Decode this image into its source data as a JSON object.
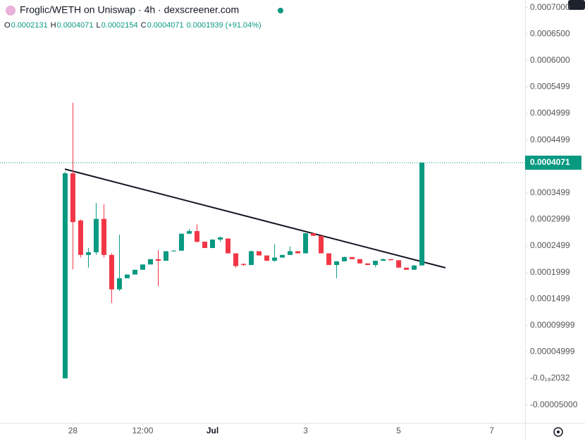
{
  "chart_data": {
    "type": "candlestick",
    "title": "Froglic/WETH on Uniswap · 4h · dexscreener.com",
    "ohlc_header": [
      {
        "key": "O",
        "text": "0.0002131"
      },
      {
        "key": "H",
        "text": "0.0004071"
      },
      {
        "key": "L",
        "text": "0.0002154"
      },
      {
        "key": "C",
        "text": "0.0004071"
      }
    ],
    "change_text": "0.0001939 (+91.04%)",
    "current_price": 0.0004071,
    "up_color": "#089981",
    "down_color": "#f23645",
    "x": [
      0,
      1,
      2,
      3,
      4,
      5,
      6,
      7,
      8,
      9,
      10,
      11,
      12,
      13,
      14,
      15,
      16,
      17,
      18,
      19,
      20,
      21,
      22,
      23,
      24,
      25,
      26,
      27,
      28,
      29,
      30,
      31,
      32,
      33,
      34,
      35,
      36,
      37,
      38,
      39,
      40,
      41,
      42,
      43,
      44,
      45,
      46
    ],
    "open": [
      0.0,
      0.000387,
      0.000298,
      0.000233,
      0.000238,
      0.000301,
      0.000233,
      0.000168,
      0.000189,
      0.000196,
      0.000205,
      0.000215,
      0.000225,
      0.000222,
      0.00024,
      0.000241,
      0.000273,
      0.000278,
      0.000258,
      0.000246,
      0.000262,
      0.000264,
      0.000236,
      0.000216,
      0.000214,
      0.00024,
      0.000232,
      0.000222,
      0.000228,
      0.000233,
      0.00024,
      0.000236,
      0.000274,
      0.000269,
      0.000236,
      0.000214,
      0.000221,
      0.000229,
      0.000225,
      0.000217,
      0.000214,
      0.000222,
      0.000225,
      0.000223,
      0.000209,
      0.000205,
      0.0002131
    ],
    "high": [
      0.00039,
      0.00052,
      0.0003,
      0.000246,
      0.000331,
      0.000329,
      0.000236,
      0.000271,
      0.000196,
      0.000205,
      0.000215,
      0.000225,
      0.000242,
      0.00024,
      0.000242,
      0.000273,
      0.000282,
      0.000291,
      0.000258,
      0.000262,
      0.000268,
      0.000264,
      0.000236,
      0.000217,
      0.000241,
      0.00024,
      0.000232,
      0.000253,
      0.000233,
      0.000249,
      0.00024,
      0.000274,
      0.000274,
      0.000269,
      0.000236,
      0.000221,
      0.00023,
      0.000229,
      0.000225,
      0.000217,
      0.000222,
      0.000226,
      0.000225,
      0.000223,
      0.000209,
      0.000214,
      0.0004071
    ],
    "low": [
      0.0,
      0.000206,
      0.000228,
      0.000209,
      0.000233,
      0.000228,
      0.000142,
      0.000165,
      0.000189,
      0.000196,
      0.000205,
      0.000215,
      0.000174,
      0.000222,
      0.00024,
      0.000241,
      0.000273,
      0.000256,
      0.000246,
      0.000246,
      0.000258,
      0.000236,
      0.000209,
      0.000212,
      0.000214,
      0.000232,
      0.000222,
      0.00022,
      0.000228,
      0.000233,
      0.000236,
      0.000236,
      0.000269,
      0.000236,
      0.000214,
      0.000189,
      0.000221,
      0.000225,
      0.000217,
      0.000214,
      0.00021,
      0.000222,
      0.000223,
      0.000209,
      0.000205,
      0.000205,
      0.0002154
    ],
    "close": [
      0.000387,
      0.000295,
      0.000233,
      0.000238,
      0.000301,
      0.000233,
      0.000168,
      0.000189,
      0.000196,
      0.000205,
      0.000215,
      0.000225,
      0.000222,
      0.00024,
      0.000241,
      0.000273,
      0.000278,
      0.000258,
      0.000246,
      0.000262,
      0.000266,
      0.000236,
      0.000212,
      0.000214,
      0.00024,
      0.000232,
      0.000222,
      0.000228,
      0.000233,
      0.00024,
      0.000236,
      0.000274,
      0.000269,
      0.000236,
      0.000214,
      0.000221,
      0.000229,
      0.000225,
      0.000217,
      0.000214,
      0.000222,
      0.000225,
      0.000223,
      0.000209,
      0.000205,
      0.000213,
      0.0004071
    ],
    "xlim": [
      -8.4,
      59.3
    ],
    "xticks": [
      {
        "value": 1,
        "label": "28"
      },
      {
        "value": 10,
        "label": "12:00"
      },
      {
        "value": 19,
        "label": "Jul"
      },
      {
        "value": 31,
        "label": "3"
      },
      {
        "value": 43,
        "label": "5"
      },
      {
        "value": 55,
        "label": "7"
      }
    ],
    "ylim": [
      -8.38e-05,
      0.0007141
    ],
    "yticks": [
      {
        "value": 0.0007,
        "label": "0.0007000"
      },
      {
        "value": 0.00065,
        "label": "0.0006500"
      },
      {
        "value": 0.0006,
        "label": "0.0006000"
      },
      0.0005499,
      0.0004999,
      0.0004499,
      0.0003499,
      0.0002999,
      0.0002499,
      0.0001999,
      0.0001499,
      9.999e-05,
      4.999e-05,
      {
        "value": -2.032e-19,
        "label": "-0.0₁₈2032"
      },
      {
        "value": -5e-05,
        "label": "-0.00005000"
      }
    ]
  }
}
